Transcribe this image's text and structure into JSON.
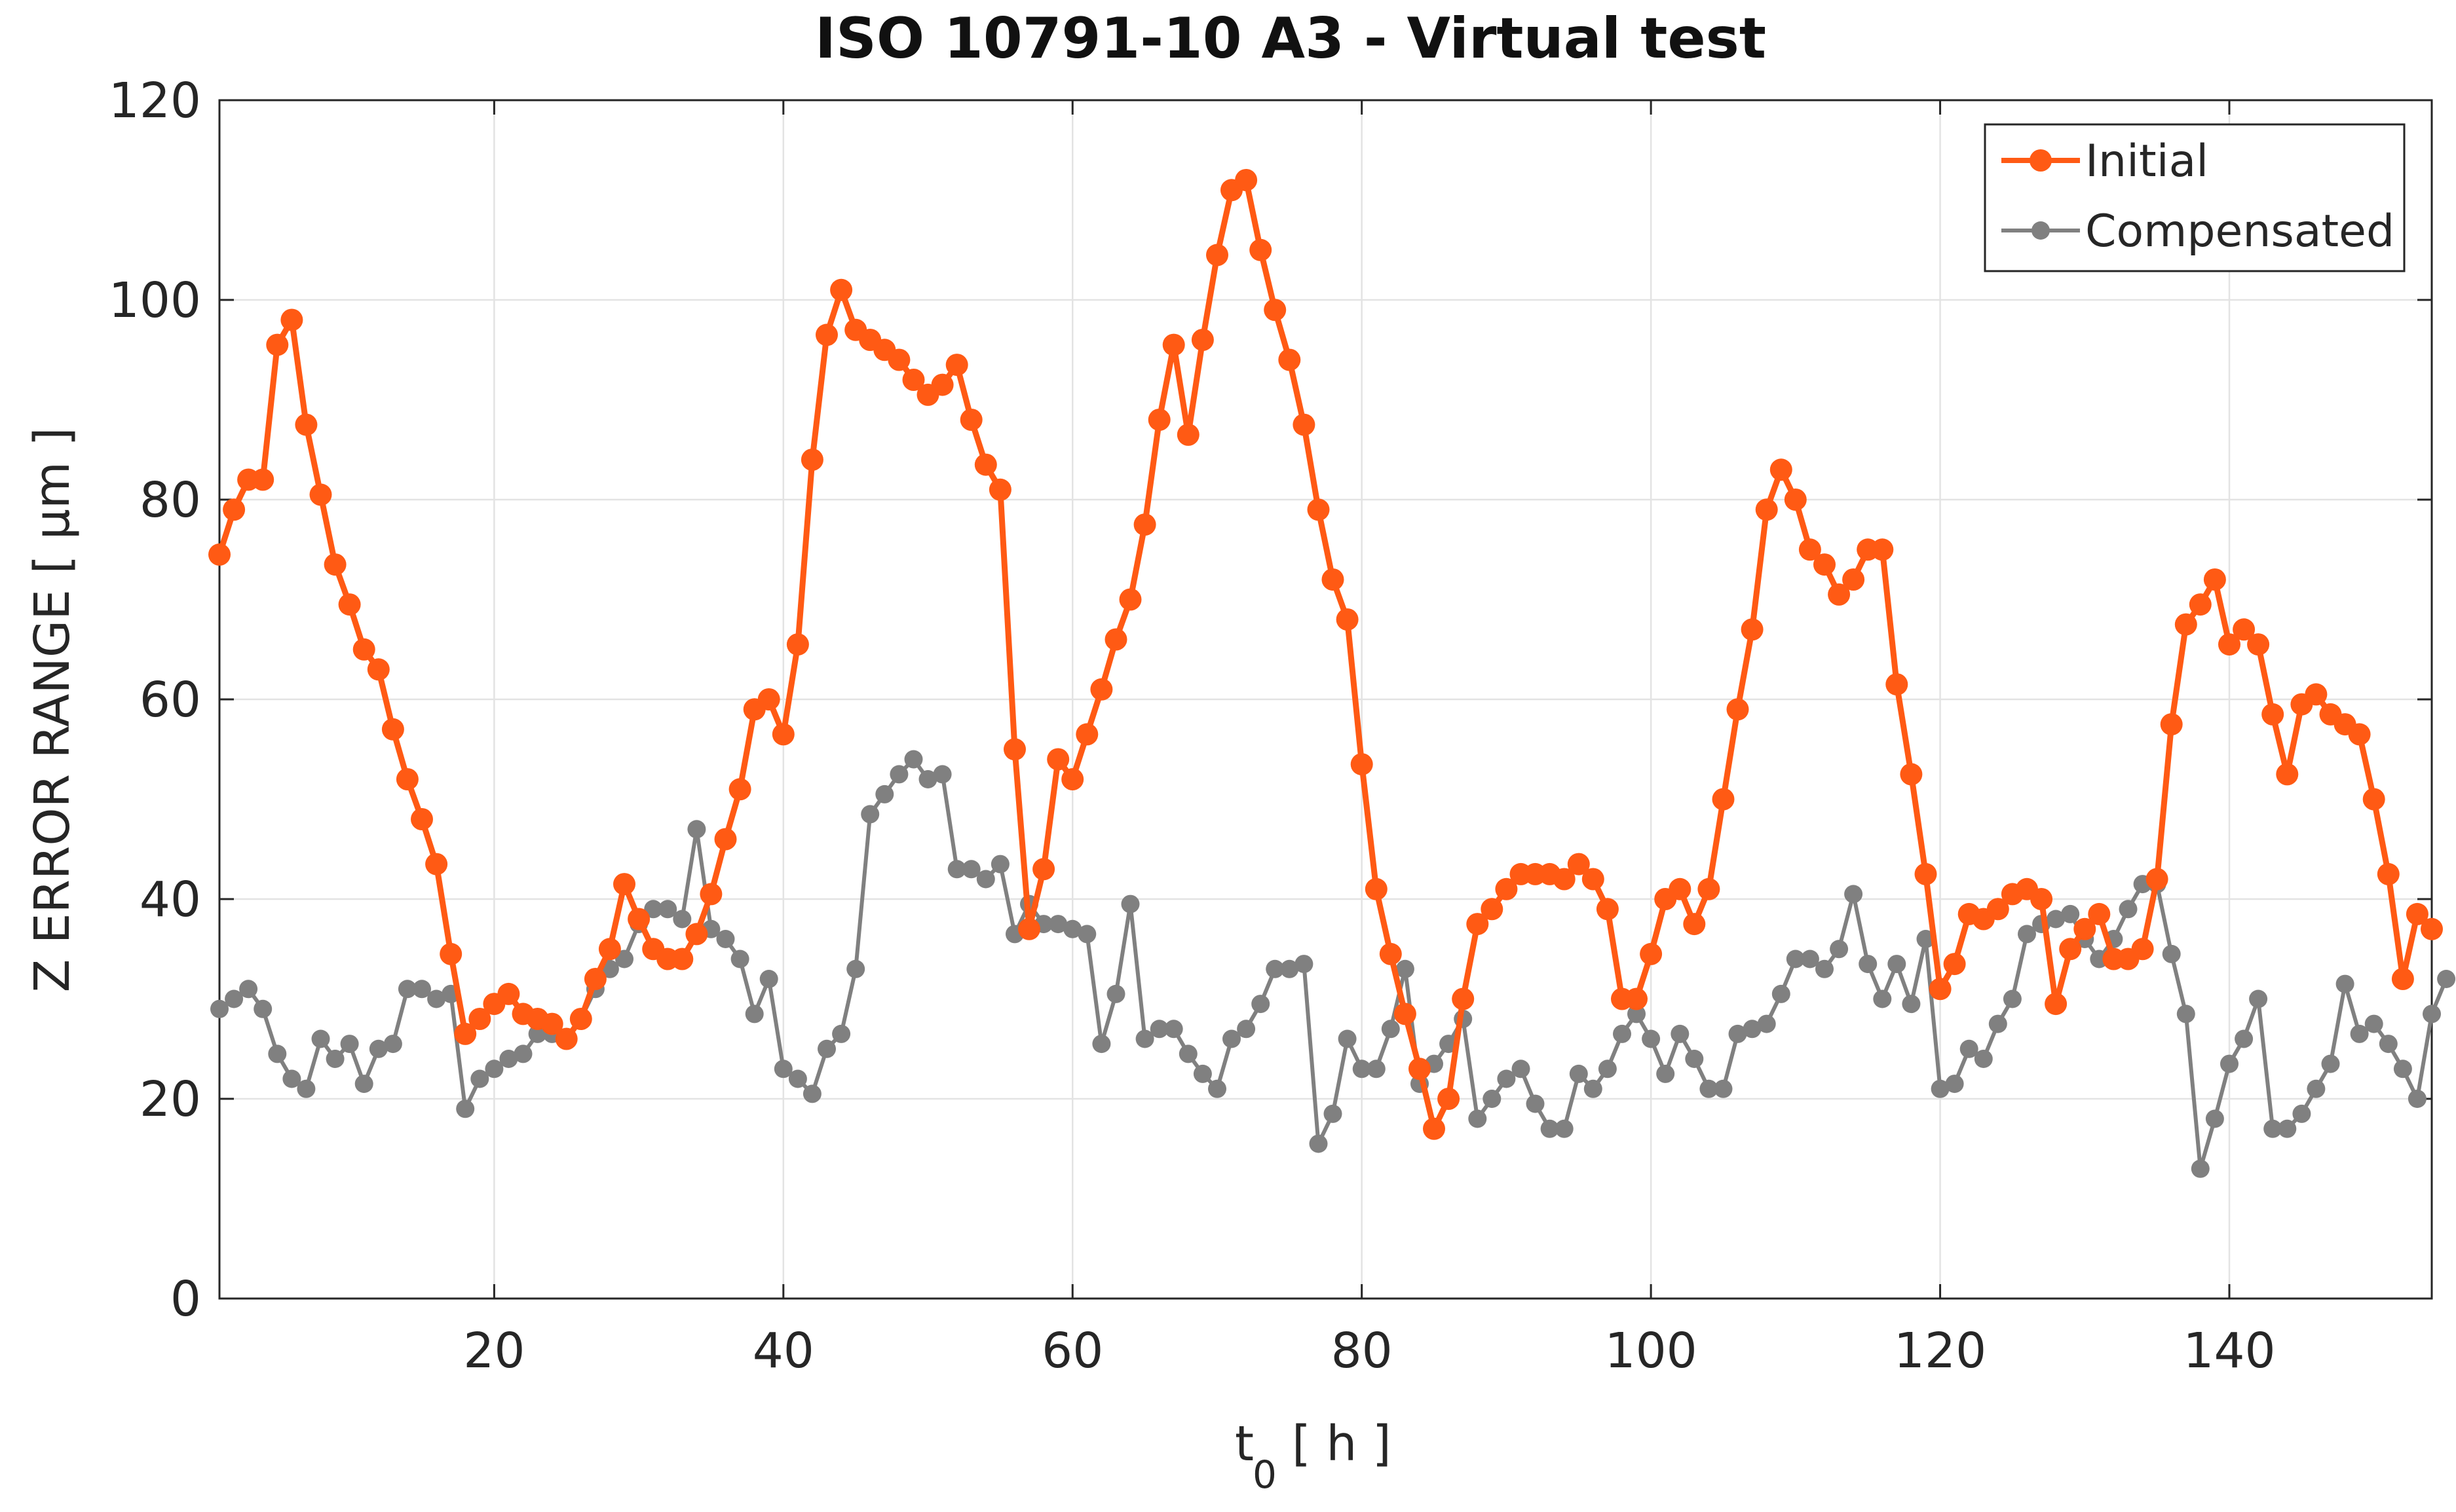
{
  "chart_data": {
    "type": "line",
    "title": "ISO 10791-10 A3 - Virtual test",
    "xlabel": "t",
    "xlabel_subscript": "0",
    "xlabel_unit": "[ h ]",
    "ylabel": "Z ERROR RANGE [ μm ]",
    "xlim": [
      1,
      154
    ],
    "ylim": [
      0,
      120
    ],
    "xticks": [
      20,
      40,
      60,
      80,
      100,
      120,
      140
    ],
    "yticks": [
      0,
      20,
      40,
      60,
      80,
      100,
      120
    ],
    "grid": true,
    "legend_position": "top-right",
    "x_start": 1,
    "series": [
      {
        "name": "Initial",
        "color": "#ff5a14",
        "values": [
          74.5,
          79,
          82,
          82,
          95.5,
          98,
          87.5,
          80.5,
          73.5,
          69.5,
          65,
          63,
          57,
          52,
          48,
          43.5,
          34.5,
          26.5,
          28,
          29.5,
          30.5,
          28.5,
          28,
          27.5,
          26,
          28,
          32,
          35,
          41.5,
          38,
          35,
          34,
          34,
          36.5,
          40.5,
          46,
          51,
          59,
          60,
          56.5,
          65.5,
          84,
          96.5,
          101,
          97,
          96,
          95,
          94,
          92,
          90.5,
          91.5,
          93.5,
          88,
          83.5,
          81,
          55,
          37,
          43,
          54,
          52,
          56.5,
          61,
          66,
          70,
          77.5,
          88,
          95.5,
          86.5,
          96,
          104.5,
          111,
          112,
          105,
          99,
          94,
          87.5,
          79,
          72,
          68,
          53.5,
          41,
          34.5,
          28.5,
          23,
          17,
          20,
          30,
          37.5,
          39,
          41,
          42.5,
          42.5,
          42.5,
          42,
          43.5,
          42,
          39,
          30,
          30,
          34.5,
          40,
          41,
          37.5,
          41,
          50,
          59,
          67,
          79,
          83,
          80,
          75,
          73.5,
          70.5,
          72,
          75,
          75,
          61.5,
          52.5,
          42.5,
          31,
          33.5,
          38.5,
          38,
          39,
          40.5,
          41,
          40,
          29.5,
          35,
          37,
          38.5,
          34,
          34,
          35,
          42,
          57.5,
          67.5,
          69.5,
          72,
          65.5,
          67,
          65.5,
          58.5,
          52.5,
          59.5,
          60.5,
          58.5,
          57.5,
          56.5,
          50,
          42.5,
          32,
          38.5,
          37
        ]
      },
      {
        "name": "Compensated",
        "color": "#808080",
        "values": [
          29,
          30,
          31,
          29,
          24.5,
          22,
          21,
          26,
          24,
          25.5,
          21.5,
          25,
          25.5,
          31,
          31,
          30,
          30.5,
          19,
          22,
          23,
          24,
          24.5,
          26.5,
          26.5,
          26,
          28,
          31,
          33,
          34,
          37.5,
          39,
          39,
          38,
          47,
          37,
          36,
          34,
          28.5,
          32,
          23,
          22,
          20.5,
          25,
          26.5,
          33,
          48.5,
          50.5,
          52.5,
          54,
          52,
          52.5,
          43,
          43,
          42,
          43.5,
          36.5,
          39.5,
          37.5,
          37.5,
          37,
          36.5,
          25.5,
          30.5,
          39.5,
          26,
          27,
          27,
          24.5,
          22.5,
          21,
          26,
          27,
          29.5,
          33,
          33,
          33.5,
          15.5,
          18.5,
          26,
          23,
          23,
          27,
          33,
          21.5,
          23.5,
          25.5,
          28,
          18,
          20,
          22,
          23,
          19.5,
          17,
          17,
          22.5,
          21,
          23,
          26.5,
          28.5,
          26,
          22.5,
          26.5,
          24,
          21,
          21,
          26.5,
          27,
          27.5,
          30.5,
          34,
          34,
          33,
          35,
          40.5,
          33.5,
          30,
          33.5,
          29.5,
          36,
          21,
          21.5,
          25,
          24,
          27.5,
          30,
          36.5,
          37.5,
          38,
          38.5,
          36,
          34,
          36,
          39,
          41.5,
          41.5,
          34.5,
          28.5,
          13,
          18,
          23.5,
          26,
          30,
          17,
          17,
          18.5,
          21,
          23.5,
          31.5,
          26.5,
          27.5,
          25.5,
          23,
          20,
          28.5,
          32
        ]
      }
    ]
  }
}
